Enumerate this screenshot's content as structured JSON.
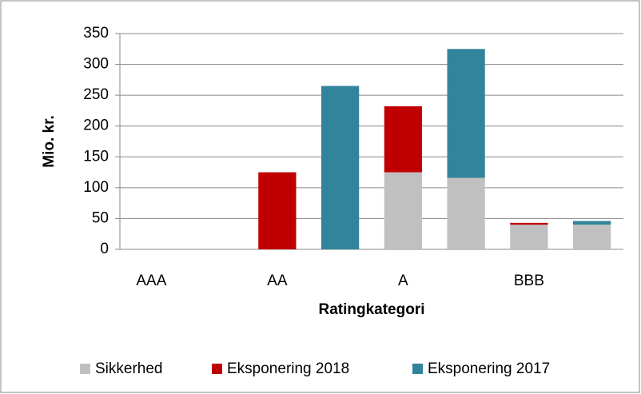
{
  "chart_data": {
    "type": "stacked_bar",
    "y_label": "Mio. kr.",
    "x_label": "Ratingkategori",
    "categories": [
      "AAA",
      null,
      "AA",
      null,
      "A",
      null,
      "BBB",
      null
    ],
    "series": [
      {
        "name": "Sikkerhed",
        "color": "#c0c0c0",
        "values": [
          0,
          0,
          0,
          0,
          125,
          116,
          40,
          40
        ]
      },
      {
        "name": "Eksponering 2018",
        "color": "#c00000",
        "values": [
          0,
          0,
          125,
          0,
          107,
          0,
          3,
          0
        ]
      },
      {
        "name": "Eksponering 2017",
        "color": "#31849b",
        "values": [
          0,
          0,
          0,
          265,
          0,
          209,
          0,
          6
        ]
      }
    ],
    "ylim": [
      0,
      350
    ],
    "yticks": [
      0,
      50,
      100,
      150,
      200,
      250,
      300,
      350
    ],
    "grid": true,
    "legend": "bottom"
  }
}
